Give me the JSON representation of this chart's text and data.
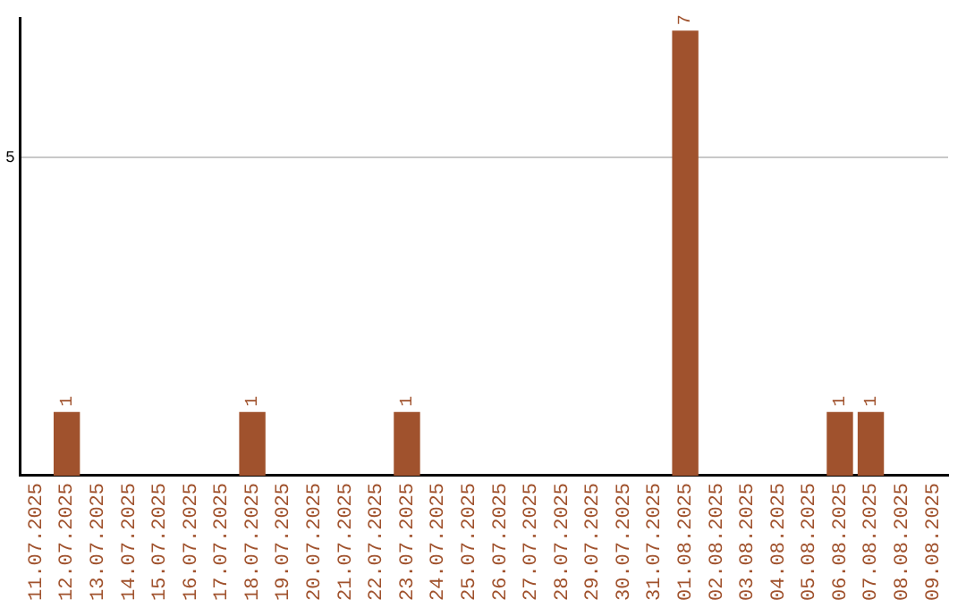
{
  "chart_data": {
    "type": "bar",
    "categories": [
      "11.07.2025",
      "12.07.2025",
      "13.07.2025",
      "14.07.2025",
      "15.07.2025",
      "16.07.2025",
      "17.07.2025",
      "18.07.2025",
      "19.07.2025",
      "20.07.2025",
      "21.07.2025",
      "22.07.2025",
      "23.07.2025",
      "24.07.2025",
      "25.07.2025",
      "26.07.2025",
      "27.07.2025",
      "28.07.2025",
      "29.07.2025",
      "30.07.2025",
      "31.07.2025",
      "01.08.2025",
      "02.08.2025",
      "03.08.2025",
      "04.08.2025",
      "05.08.2025",
      "06.08.2025",
      "07.08.2025",
      "08.08.2025",
      "09.08.2025"
    ],
    "values": [
      0,
      1,
      0,
      0,
      0,
      0,
      0,
      1,
      0,
      0,
      0,
      0,
      1,
      0,
      0,
      0,
      0,
      0,
      0,
      0,
      0,
      7,
      0,
      0,
      0,
      0,
      1,
      1,
      0,
      0
    ],
    "value_labels": [
      null,
      "1",
      null,
      null,
      null,
      null,
      null,
      "1",
      null,
      null,
      null,
      null,
      "1",
      null,
      null,
      null,
      null,
      null,
      null,
      null,
      null,
      "7",
      null,
      null,
      null,
      null,
      "1",
      "1",
      null,
      null
    ],
    "color": "#a0522d",
    "ylim": [
      0,
      7.2
    ],
    "yticks": [
      5
    ],
    "grid": "y"
  }
}
